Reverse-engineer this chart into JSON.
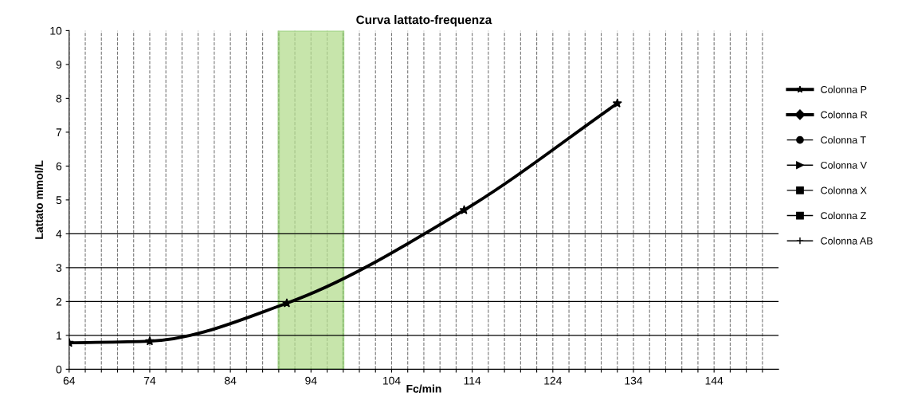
{
  "chart_data": {
    "type": "line",
    "title": "Curva lattato-frequenza",
    "xlabel": "Fc/min",
    "ylabel": "Lattato mmol/L",
    "xlim": [
      64,
      152
    ],
    "ylim": [
      0,
      10
    ],
    "xticks": [
      64,
      {
        "value": 66,
        "label": null
      },
      {
        "value": 68,
        "label": null
      },
      {
        "value": 70,
        "label": null
      },
      {
        "value": 72,
        "label": null
      },
      74,
      {
        "value": 76,
        "label": null
      },
      {
        "value": 78,
        "label": null
      },
      {
        "value": 80,
        "label": null
      },
      {
        "value": 82,
        "label": null
      },
      84,
      {
        "value": 86,
        "label": null
      },
      {
        "value": 88,
        "label": null
      },
      {
        "value": 90,
        "label": null
      },
      {
        "value": 92,
        "label": null
      },
      94,
      {
        "value": 96,
        "label": null
      },
      {
        "value": 98,
        "label": null
      },
      {
        "value": 100,
        "label": null
      },
      {
        "value": 102,
        "label": null
      },
      104,
      {
        "value": 106,
        "label": null
      },
      {
        "value": 108,
        "label": null
      },
      {
        "value": 110,
        "label": null
      },
      {
        "value": 112,
        "label": null
      },
      114,
      {
        "value": 116,
        "label": null
      },
      {
        "value": 118,
        "label": null
      },
      {
        "value": 120,
        "label": null
      },
      {
        "value": 122,
        "label": null
      },
      124,
      {
        "value": 126,
        "label": null
      },
      {
        "value": 128,
        "label": null
      },
      {
        "value": 130,
        "label": null
      },
      {
        "value": 132,
        "label": null
      },
      134,
      {
        "value": 136,
        "label": null
      },
      {
        "value": 138,
        "label": null
      },
      {
        "value": 140,
        "label": null
      },
      {
        "value": 142,
        "label": null
      },
      144,
      {
        "value": 146,
        "label": null
      },
      {
        "value": 148,
        "label": null
      },
      {
        "value": 150,
        "label": null
      }
    ],
    "yticks": [
      0,
      1,
      2,
      3,
      4,
      5,
      6,
      7,
      8,
      9,
      10
    ],
    "grid": "x",
    "legend": "right",
    "series": [
      {
        "name": "Colonna P",
        "color": "#000000",
        "marker": "star",
        "x": [
          64,
          74,
          91,
          113,
          132
        ],
        "values": [
          0.78,
          0.83,
          1.95,
          4.7,
          7.85
        ]
      },
      {
        "name": "Colonna R",
        "color": "#000000",
        "marker": "diamond"
      },
      {
        "name": "Colonna T",
        "color": "#000000",
        "marker": "circle"
      },
      {
        "name": "Colonna V",
        "color": "#000000",
        "marker": "triangle"
      },
      {
        "name": "Colonna X",
        "color": "#000000",
        "marker": "square"
      },
      {
        "name": "Colonna Z",
        "color": "#000000",
        "marker": "square"
      },
      {
        "name": "Colonna AB",
        "color": "#000000",
        "marker": "cross"
      }
    ],
    "ref_lines": [
      {
        "axis": "y",
        "value": 1,
        "label": null
      },
      {
        "axis": "y",
        "value": 2,
        "label": null
      },
      {
        "axis": "y",
        "value": 3,
        "label": null
      },
      {
        "axis": "y",
        "value": 4,
        "label": null
      }
    ],
    "bands": [
      {
        "axis": "x",
        "from": 90,
        "to": 98,
        "label": null,
        "color": "#b5dc8f"
      }
    ]
  }
}
